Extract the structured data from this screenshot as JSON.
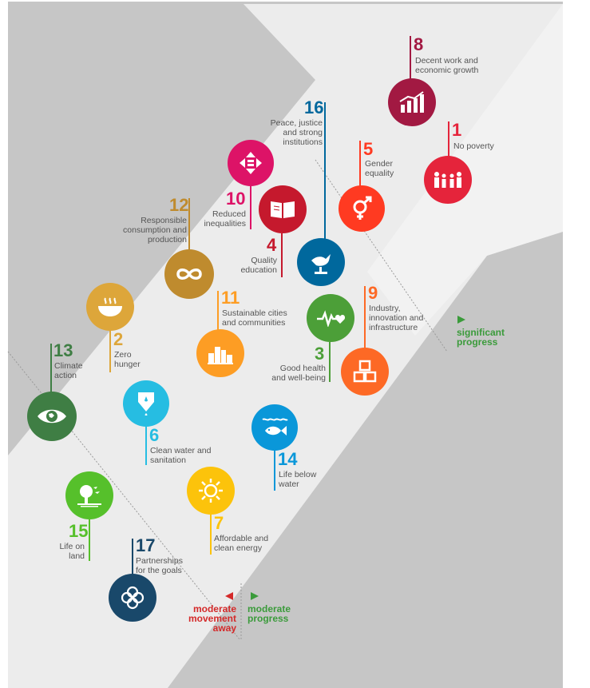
{
  "colors": {
    "background": "#c8c8c8",
    "arrow": "#ebebeb",
    "significant_green": "#3b9b3b",
    "moderate_green": "#3b9b3b",
    "away_red": "#d42a2a"
  },
  "goals": [
    {
      "n": "8",
      "label": "Decent work and economic growth",
      "color": "#a21942",
      "icon": "growth-chart-icon"
    },
    {
      "n": "1",
      "label": "No poverty",
      "color": "#e5243b",
      "icon": "people-icon"
    },
    {
      "n": "16",
      "label": "Peace, justice and strong institutions",
      "color": "#00689d",
      "icon": "dove-icon"
    },
    {
      "n": "5",
      "label": "Gender equality",
      "color": "#ff3a21",
      "icon": "gender-icon"
    },
    {
      "n": "10",
      "label": "Reduced inequalities",
      "color": "#dd1367",
      "icon": "equality-icon"
    },
    {
      "n": "12",
      "label": "Responsible consumption and production",
      "color": "#bf8b2e",
      "icon": "infinity-icon"
    },
    {
      "n": "4",
      "label": "Quality education",
      "color": "#c5192d",
      "icon": "book-icon"
    },
    {
      "n": "9",
      "label": "Industry, innovation and infrastructure",
      "color": "#fd6925",
      "icon": "cubes-icon"
    },
    {
      "n": "11",
      "label": "Sustainable cities and communities",
      "color": "#fd9d24",
      "icon": "city-icon"
    },
    {
      "n": "3",
      "label": "Good health and well-being",
      "color": "#4c9f38",
      "icon": "heartbeat-icon"
    },
    {
      "n": "13",
      "label": "Climate action",
      "color": "#3f7e44",
      "icon": "eye-globe-icon"
    },
    {
      "n": "2",
      "label": "Zero hunger",
      "color": "#dda63a",
      "icon": "bowl-icon"
    },
    {
      "n": "6",
      "label": "Clean water and sanitation",
      "color": "#26bde2",
      "icon": "water-drop-icon"
    },
    {
      "n": "14",
      "label": "Life below water",
      "color": "#0a97d9",
      "icon": "fish-icon"
    },
    {
      "n": "7",
      "label": "Affordable and clean energy",
      "color": "#fcc30b",
      "icon": "sun-icon"
    },
    {
      "n": "15",
      "label": "Life on land",
      "color": "#56c02b",
      "icon": "tree-icon"
    },
    {
      "n": "17",
      "label": "Partnerships for the goals",
      "color": "#19486a",
      "icon": "rings-icon"
    }
  ],
  "legend": {
    "significant": "significant progress",
    "moderate": "moderate progress",
    "away": "moderate movement away"
  }
}
